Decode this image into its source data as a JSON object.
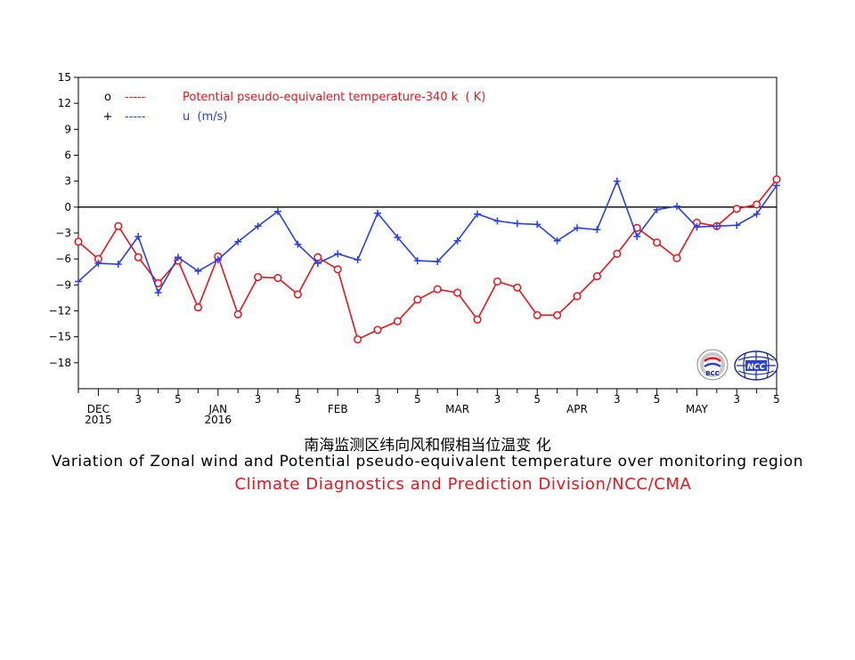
{
  "chart_data": {
    "type": "line",
    "ylim": [
      -21,
      15
    ],
    "yticks": [
      15,
      12,
      9,
      6,
      3,
      0,
      -3,
      -6,
      -9,
      -12,
      -15,
      -18
    ],
    "xlim": [
      0,
      35
    ],
    "grid": false,
    "legend_position": "top-left",
    "x_ticks": [
      {
        "x": 0,
        "label": ""
      },
      {
        "x": 1,
        "label": "DEC"
      },
      {
        "x": 2,
        "label": ""
      },
      {
        "x": 3,
        "label": "3"
      },
      {
        "x": 4,
        "label": ""
      },
      {
        "x": 5,
        "label": "5"
      },
      {
        "x": 6,
        "label": ""
      },
      {
        "x": 7,
        "label": "JAN"
      },
      {
        "x": 8,
        "label": ""
      },
      {
        "x": 9,
        "label": "3"
      },
      {
        "x": 10,
        "label": ""
      },
      {
        "x": 11,
        "label": "5"
      },
      {
        "x": 12,
        "label": ""
      },
      {
        "x": 13,
        "label": "FEB"
      },
      {
        "x": 14,
        "label": ""
      },
      {
        "x": 15,
        "label": "3"
      },
      {
        "x": 16,
        "label": ""
      },
      {
        "x": 17,
        "label": "5"
      },
      {
        "x": 18,
        "label": ""
      },
      {
        "x": 19,
        "label": "MAR"
      },
      {
        "x": 20,
        "label": ""
      },
      {
        "x": 21,
        "label": "3"
      },
      {
        "x": 22,
        "label": ""
      },
      {
        "x": 23,
        "label": "5"
      },
      {
        "x": 24,
        "label": ""
      },
      {
        "x": 25,
        "label": "APR"
      },
      {
        "x": 26,
        "label": ""
      },
      {
        "x": 27,
        "label": "3"
      },
      {
        "x": 28,
        "label": ""
      },
      {
        "x": 29,
        "label": "5"
      },
      {
        "x": 30,
        "label": ""
      },
      {
        "x": 31,
        "label": "MAY"
      },
      {
        "x": 32,
        "label": ""
      },
      {
        "x": 33,
        "label": "3"
      },
      {
        "x": 34,
        "label": ""
      },
      {
        "x": 35,
        "label": "5"
      }
    ],
    "year_labels": [
      {
        "x": 1,
        "label": "2015"
      },
      {
        "x": 7,
        "label": "2016"
      }
    ],
    "zero_line": 0,
    "series": [
      {
        "name": "Potential pseudo-equivalent temperature-340 k  ( K)",
        "legend_symbol": "o",
        "legend_dash": "-----",
        "marker": "circle",
        "color": "#e8141e",
        "values": [
          -4.0,
          -6.0,
          -2.2,
          -5.8,
          -8.8,
          -6.2,
          -11.6,
          -5.7,
          -12.4,
          -8.1,
          -8.2,
          -10.1,
          -5.8,
          -7.2,
          -15.3,
          -14.2,
          -13.2,
          -10.7,
          -9.5,
          -9.9,
          -13.0,
          -8.6,
          -9.3,
          -12.5,
          -12.5,
          -10.3,
          -8.0,
          -5.4,
          -2.4,
          -4.1,
          -5.9,
          -1.8,
          -2.2,
          -0.2,
          0.3,
          3.2
        ]
      },
      {
        "name": "u  (m/s)",
        "legend_symbol": "+",
        "legend_dash": "-----",
        "marker": "plus",
        "color": "#2a3fe6",
        "values": [
          -8.6,
          -6.5,
          -6.6,
          -3.4,
          -9.9,
          -5.8,
          -7.4,
          -6.1,
          -4.0,
          -2.2,
          -0.5,
          -4.3,
          -6.5,
          -5.4,
          -6.1,
          -0.7,
          -3.5,
          -6.2,
          -6.3,
          -3.9,
          -0.8,
          -1.6,
          -1.9,
          -2.0,
          -3.9,
          -2.4,
          -2.6,
          3.0,
          -3.4,
          -0.3,
          0.1,
          -2.3,
          -2.2,
          -2.1,
          -0.8,
          2.5
        ]
      }
    ]
  },
  "caption": {
    "chinese": "南海监测区纬向风和假相当位温变 化",
    "english": "Variation of Zonal wind and Potential pseudo-equivalent temperature over monitoring region",
    "organization": "Climate Diagnostics and Prediction Division/NCC/CMA"
  },
  "logos": {
    "bcc": "BCC",
    "ncc": "NCC"
  }
}
